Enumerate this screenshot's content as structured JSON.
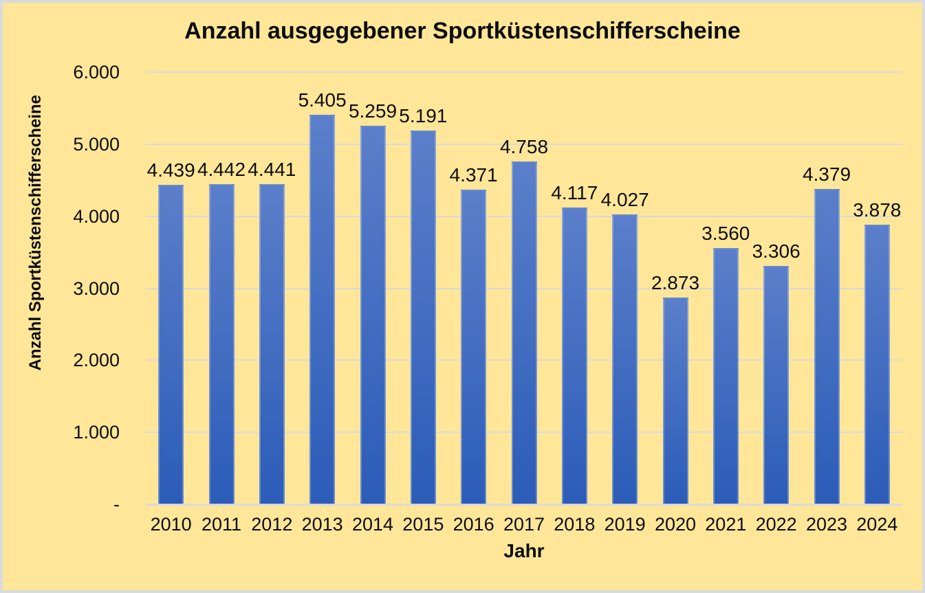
{
  "chart_data": {
    "type": "bar",
    "title": "Anzahl ausgegebener Sportküstenschifferscheine",
    "xlabel": "Jahr",
    "ylabel": "Anzahl Sportküstenschifferscheine",
    "categories": [
      "2010",
      "2011",
      "2012",
      "2013",
      "2014",
      "2015",
      "2016",
      "2017",
      "2018",
      "2019",
      "2020",
      "2021",
      "2022",
      "2023",
      "2024"
    ],
    "values": [
      4439,
      4442,
      4441,
      5405,
      5259,
      5191,
      4371,
      4758,
      4117,
      4027,
      2873,
      3560,
      3306,
      4379,
      3878
    ],
    "value_labels": [
      "4.439",
      "4.442",
      "4.441",
      "5.405",
      "5.259",
      "5.191",
      "4.371",
      "4.758",
      "4.117",
      "4.027",
      "2.873",
      "3.560",
      "3.306",
      "4.379",
      "3.878"
    ],
    "ylim": [
      0,
      6000
    ],
    "y_ticks": [
      {
        "label": "6.000",
        "value": 6000
      },
      {
        "label": "5.000",
        "value": 5000
      },
      {
        "label": "4.000",
        "value": 4000
      },
      {
        "label": "3.000",
        "value": 3000
      },
      {
        "label": "2.000",
        "value": 2000
      },
      {
        "label": "1.000",
        "value": 1000
      },
      {
        "label": "-",
        "value": 0
      }
    ],
    "grid": true,
    "legend": "none",
    "colors": {
      "background": "#FFE699",
      "bar_gradient_top": "#5B7FCA",
      "bar_gradient_bottom": "#2B5CB8",
      "gridline": "#D9D9D9",
      "frame_border": "#D8DBDD",
      "text": "#0d0d0d"
    }
  }
}
